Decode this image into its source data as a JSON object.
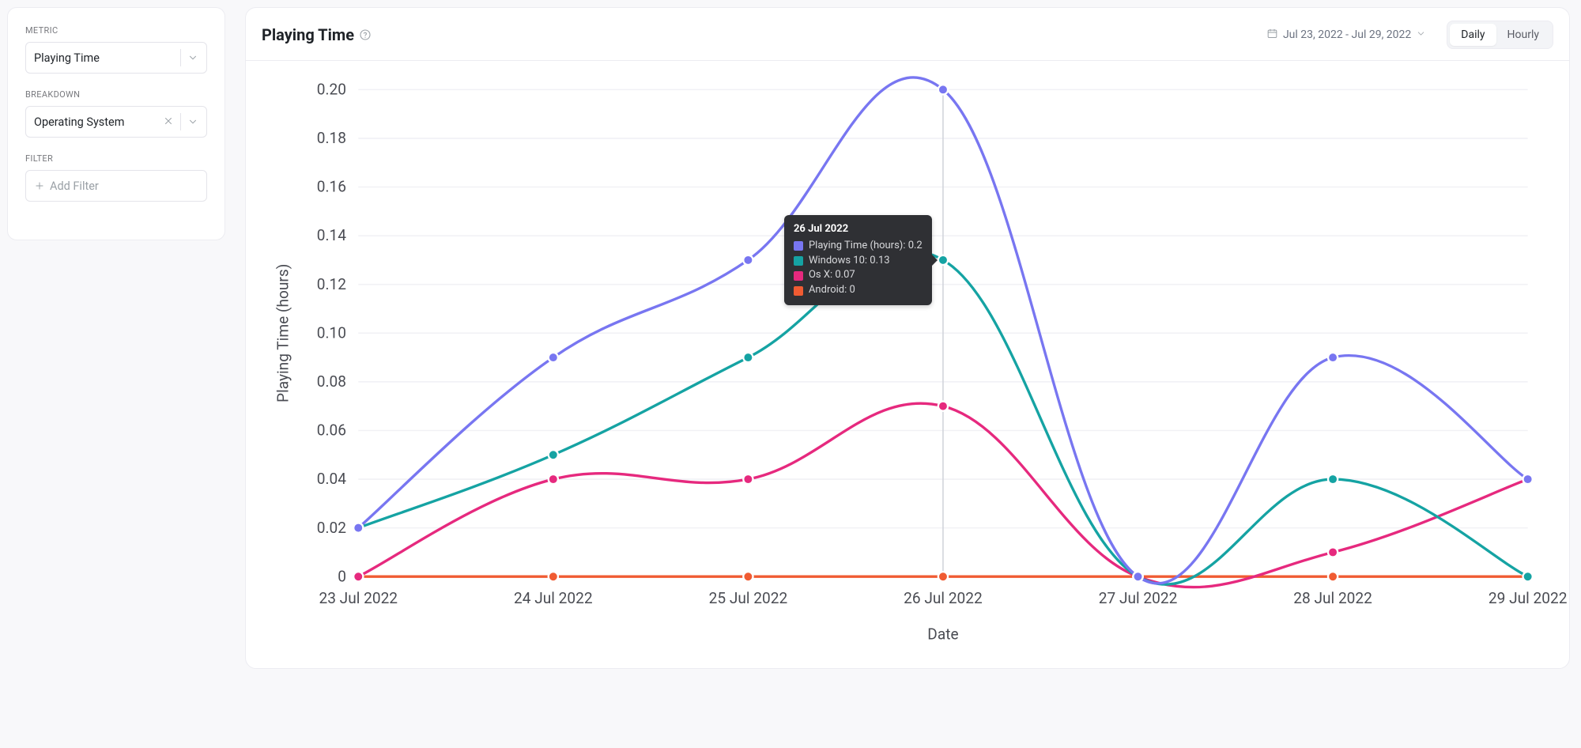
{
  "sidebar": {
    "metric": {
      "label": "METRIC",
      "value": "Playing Time"
    },
    "breakdown": {
      "label": "BREAKDOWN",
      "value": "Operating System",
      "clearable": true
    },
    "filter": {
      "label": "FILTER",
      "placeholder": "Add Filter"
    }
  },
  "header": {
    "title": "Playing Time",
    "date_range": "Jul 23, 2022 - Jul 29, 2022",
    "view_options": [
      "Daily",
      "Hourly"
    ],
    "view_active": "Daily"
  },
  "chart": {
    "type": "line",
    "x_label": "Date",
    "y_label": "Playing Time (hours)",
    "x_categories": [
      "23 Jul 2022",
      "24 Jul 2022",
      "25 Jul 2022",
      "26 Jul 2022",
      "27 Jul 2022",
      "28 Jul 2022",
      "29 Jul 2022"
    ],
    "y_lim": [
      0,
      0.2
    ],
    "y_tick_step": 0.02,
    "y_ticks": [
      0,
      0.02,
      0.04,
      0.06,
      0.08,
      0.1,
      0.12,
      0.14,
      0.16,
      0.18,
      0.2
    ],
    "background_color": "#ffffff",
    "grid_color": "#f1f1f5",
    "axis_text_color": "#4a4c53",
    "crosshair_color": "#d0d3da",
    "line_width": 2.2,
    "marker_radius": 4,
    "marker_stroke": "#ffffff",
    "font_size_ticks": 12.5,
    "series": [
      {
        "name": "Playing Time (hours)",
        "color": "#7876f1",
        "values": [
          0.02,
          0.09,
          0.13,
          0.2,
          0.0,
          0.09,
          0.04
        ]
      },
      {
        "name": "Windows 10",
        "color": "#15a3a3",
        "values": [
          0.02,
          0.05,
          0.09,
          0.13,
          0.0,
          0.04,
          0.0
        ]
      },
      {
        "name": "Os X",
        "color": "#e6297e",
        "values": [
          0.0,
          0.04,
          0.04,
          0.07,
          0.0,
          0.01,
          0.04
        ]
      },
      {
        "name": "Android",
        "color": "#f05b32",
        "values": [
          0.0,
          0.0,
          0.0,
          0.0,
          0.0,
          0.0,
          0.0
        ]
      }
    ],
    "hover_index": 3
  },
  "tooltip": {
    "title": "26 Jul 2022",
    "rows": [
      {
        "color": "#7876f1",
        "text": "Playing Time (hours): 0.2"
      },
      {
        "color": "#15a3a3",
        "text": "Windows 10: 0.13"
      },
      {
        "color": "#e6297e",
        "text": "Os X: 0.07"
      },
      {
        "color": "#f05b32",
        "text": "Android: 0"
      }
    ]
  }
}
